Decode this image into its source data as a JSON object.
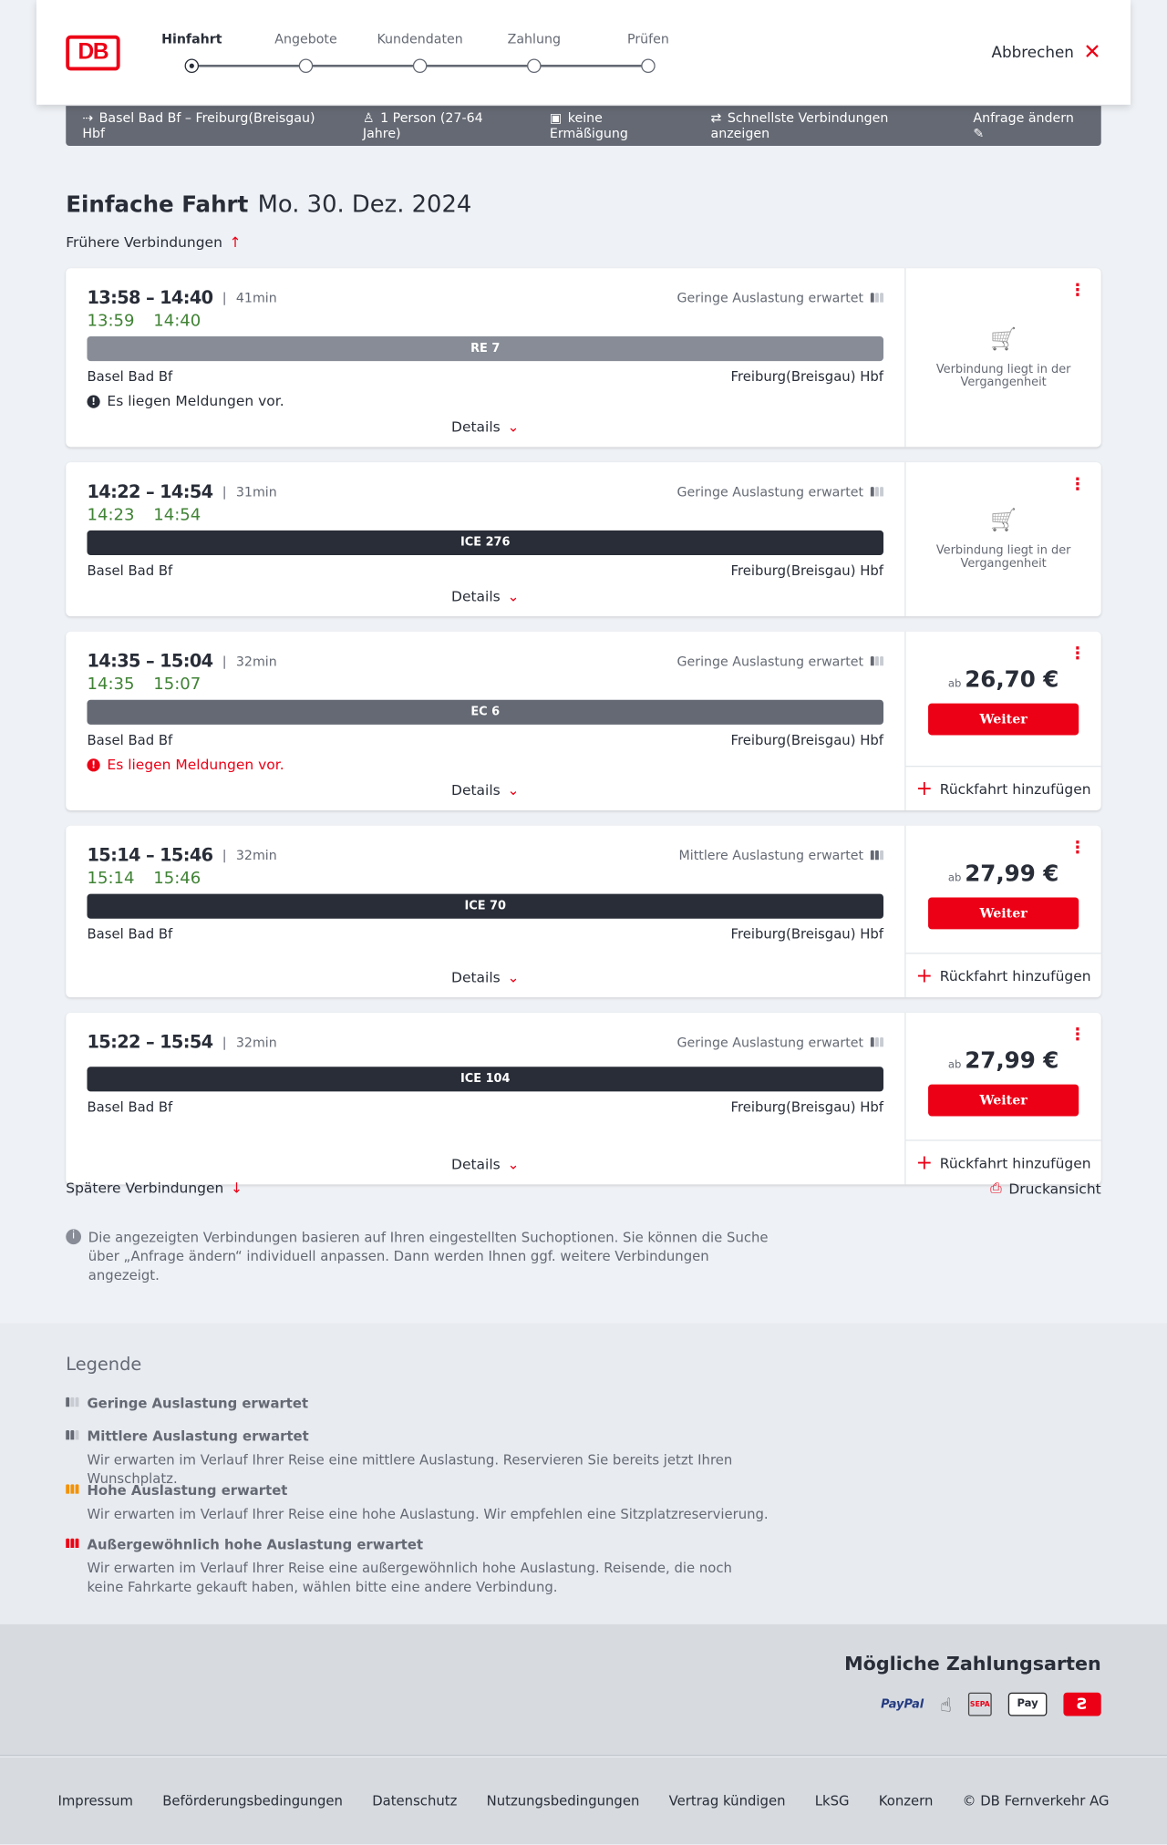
{
  "colors": {
    "accent": "#ec0016",
    "delay_ok": "#408335",
    "bar": "#646973"
  },
  "header": {
    "logo": "DB",
    "steps": [
      {
        "label": "Hinfahrt",
        "active": true
      },
      {
        "label": "Angebote"
      },
      {
        "label": "Kundendaten"
      },
      {
        "label": "Zahlung"
      },
      {
        "label": "Prüfen"
      }
    ],
    "cancel": "Abbrechen"
  },
  "search_bar": {
    "route": "Basel Bad Bf – Freiburg(Breisgau) Hbf",
    "travellers": "1 Person (27-64 Jahre)",
    "discount": "keine Ermäßigung",
    "fastest": "Schnellste Verbindungen anzeigen",
    "edit": "Anfrage ändern"
  },
  "title": {
    "trip": "Einfache Fahrt",
    "date": "Mo. 30. Dez. 2024"
  },
  "earlier": "Frühere Verbindungen",
  "later": "Spätere Verbindungen",
  "print": "Druckansicht",
  "connections": [
    {
      "times": "13:58 – 14:40",
      "duration": "41min",
      "real": [
        "13:59",
        "14:40"
      ],
      "load": "Geringe Auslastung erwartet",
      "load_level": 1,
      "train": "RE 7",
      "train_color": "#878c96",
      "from": "Basel Bad Bf",
      "to": "Freiburg(Breisgau) Hbf",
      "message": "Es liegen Meldungen vor.",
      "message_severity": "info",
      "past": "Verbindung liegt in der Vergangenheit",
      "details": "Details"
    },
    {
      "times": "14:22 – 14:54",
      "duration": "31min",
      "real": [
        "14:23",
        "14:54"
      ],
      "load": "Geringe Auslastung erwartet",
      "load_level": 1,
      "train": "ICE 276",
      "train_color": "#282d37",
      "from": "Basel Bad Bf",
      "to": "Freiburg(Breisgau) Hbf",
      "past": "Verbindung liegt in der Vergangenheit",
      "details": "Details"
    },
    {
      "times": "14:35 – 15:04",
      "duration": "32min",
      "real": [
        "14:35",
        "15:07"
      ],
      "load": "Geringe Auslastung erwartet",
      "load_level": 1,
      "train": "EC 6",
      "train_color": "#646973",
      "from": "Basel Bad Bf",
      "to": "Freiburg(Breisgau) Hbf",
      "message": "Es liegen Meldungen vor.",
      "message_severity": "warning",
      "price_prefix": "ab",
      "price": "26,70 €",
      "button": "Weiter",
      "return": "Rückfahrt hinzufügen",
      "details": "Details"
    },
    {
      "times": "15:14 – 15:46",
      "duration": "32min",
      "real": [
        "15:14",
        "15:46"
      ],
      "load": "Mittlere Auslastung erwartet",
      "load_level": 2,
      "train": "ICE 70",
      "train_color": "#282d37",
      "from": "Basel Bad Bf",
      "to": "Freiburg(Breisgau) Hbf",
      "price_prefix": "ab",
      "price": "27,99 €",
      "button": "Weiter",
      "return": "Rückfahrt hinzufügen",
      "details": "Details"
    },
    {
      "times": "15:22 – 15:54",
      "duration": "32min",
      "load": "Geringe Auslastung erwartet",
      "load_level": 1,
      "train": "ICE 104",
      "train_color": "#282d37",
      "from": "Basel Bad Bf",
      "to": "Freiburg(Breisgau) Hbf",
      "price_prefix": "ab",
      "price": "27,99 €",
      "button": "Weiter",
      "return": "Rückfahrt hinzufügen",
      "details": "Details"
    }
  ],
  "info": "Die angezeigten Verbindungen basieren auf Ihren eingestellten Suchoptionen. Sie können die Suche über „Anfrage ändern“ individuell anpassen. Dann werden Ihnen ggf. weitere Verbindungen angezeigt.",
  "legend": {
    "title": "Legende",
    "items": [
      {
        "label": "Geringe Auslastung erwartet",
        "level": 1
      },
      {
        "label": "Mittlere Auslastung erwartet",
        "level": 2,
        "text": "Wir erwarten im Verlauf Ihrer Reise eine mittlere Auslastung. Reservieren Sie bereits jetzt Ihren Wunschplatz."
      },
      {
        "label": "Hohe Auslastung erwartet",
        "level": 3,
        "color": "#f39200",
        "text": "Wir erwarten im Verlauf Ihrer Reise eine hohe Auslastung. Wir empfehlen eine Sitzplatzreservierung."
      },
      {
        "label": "Außergewöhnlich hohe Auslastung erwartet",
        "level": 4,
        "color": "#ec0016",
        "text": "Wir erwarten im Verlauf Ihrer Reise eine außergewöhnlich hohe Auslastung. Reisende, die noch keine Fahrkarte gekauft haben, wählen bitte eine andere Verbindung."
      }
    ]
  },
  "payment": {
    "title": "Mögliche Zahlungsarten",
    "methods": [
      "PayPal",
      "credit-card-contactless",
      "SEPA",
      "Pay",
      "DB-Bonus"
    ]
  },
  "footer": [
    "Impressum",
    "Beförderungsbedingungen",
    "Datenschutz",
    "Nutzungsbedingungen",
    "Vertrag kündigen",
    "LkSG",
    "Konzern",
    "© DB Fernverkehr AG"
  ]
}
